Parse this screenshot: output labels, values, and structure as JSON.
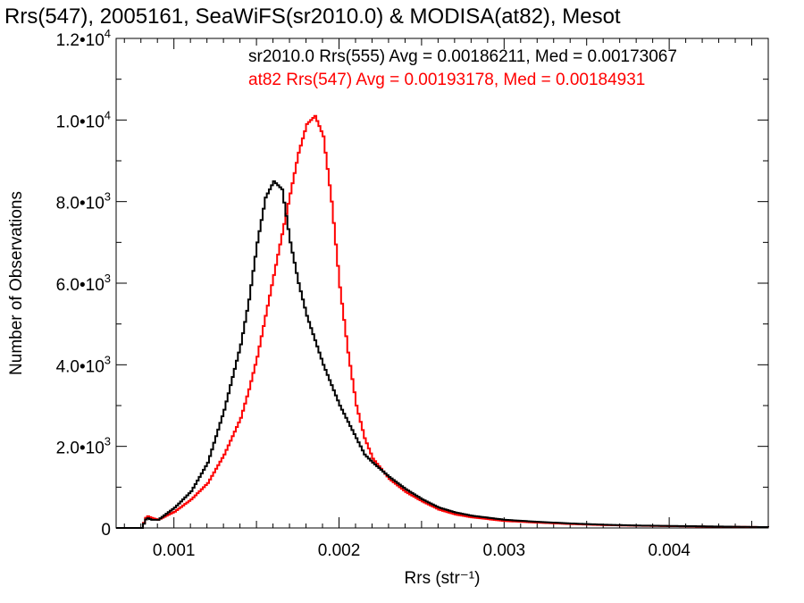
{
  "chart_data": {
    "type": "line",
    "title": "Rrs(547), 2005161, SeaWiFS(sr2010.0) & MODISA(at82), Mesot",
    "xlabel": "Rrs (str⁻¹)",
    "ylabel": "Number of Observations",
    "xlim": [
      0.00065,
      0.0046
    ],
    "ylim": [
      0,
      12000
    ],
    "grid": false,
    "legend_placement": "top-right",
    "x_ticks": [
      {
        "value": 0.001,
        "label": "0.001"
      },
      {
        "value": 0.002,
        "label": "0.002"
      },
      {
        "value": 0.003,
        "label": "0.003"
      },
      {
        "value": 0.004,
        "label": "0.004"
      }
    ],
    "y_ticks": [
      {
        "value": 0,
        "label": "0",
        "exp": ""
      },
      {
        "value": 2000,
        "label": "2.0•10",
        "exp": "3"
      },
      {
        "value": 4000,
        "label": "4.0•10",
        "exp": "3"
      },
      {
        "value": 6000,
        "label": "6.0•10",
        "exp": "3"
      },
      {
        "value": 8000,
        "label": "8.0•10",
        "exp": "3"
      },
      {
        "value": 10000,
        "label": "1.0•10",
        "exp": "4"
      },
      {
        "value": 12000,
        "label": "1.2•10",
        "exp": "4"
      }
    ],
    "x": [
      0.00065,
      0.0008,
      0.00083,
      0.00086,
      0.0009,
      0.001,
      0.0011,
      0.0012,
      0.0013,
      0.0014,
      0.00145,
      0.0015,
      0.00155,
      0.0016,
      0.00165,
      0.0017,
      0.00175,
      0.0018,
      0.00185,
      0.0019,
      0.00195,
      0.002,
      0.00205,
      0.0021,
      0.00215,
      0.0022,
      0.0023,
      0.0024,
      0.0025,
      0.0026,
      0.0027,
      0.0028,
      0.003,
      0.0032,
      0.0034,
      0.0036,
      0.0038,
      0.004,
      0.0042,
      0.0044,
      0.0046
    ],
    "series": [
      {
        "name": "sr2010.0 Rrs(555) Avg = 0.00186211, Med = 0.00173067",
        "color": "#000000",
        "values": [
          0,
          0,
          250,
          200,
          200,
          500,
          900,
          1600,
          2900,
          4500,
          5600,
          7000,
          8100,
          8500,
          8300,
          7000,
          6000,
          5200,
          4600,
          4000,
          3500,
          3000,
          2600,
          2200,
          1800,
          1600,
          1250,
          950,
          700,
          500,
          380,
          300,
          200,
          150,
          110,
          80,
          60,
          50,
          40,
          30,
          20
        ]
      },
      {
        "name": "at82 Rrs(547) Avg = 0.00193178, Med = 0.00184931",
        "color": "#ff0000",
        "values": [
          0,
          0,
          300,
          250,
          200,
          400,
          700,
          1100,
          1800,
          2700,
          3400,
          4200,
          5200,
          6200,
          7200,
          8200,
          9200,
          9900,
          10100,
          9600,
          8000,
          5900,
          4300,
          3000,
          2200,
          1700,
          1200,
          880,
          650,
          450,
          330,
          260,
          170,
          130,
          95,
          70,
          55,
          45,
          35,
          28,
          20
        ]
      }
    ]
  }
}
